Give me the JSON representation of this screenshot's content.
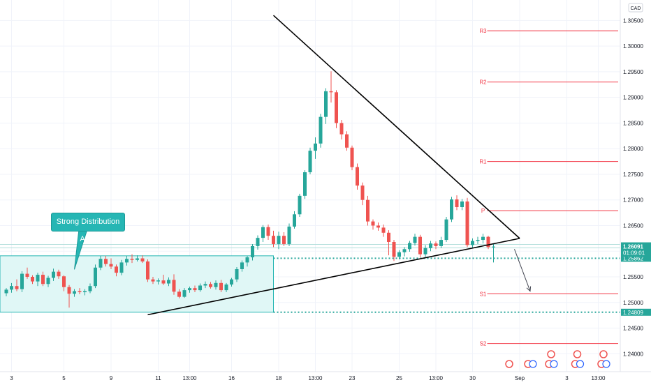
{
  "chart_data": {
    "type": "candlestick",
    "currency_badge": "CAD",
    "y_axis": {
      "min": 1.2365,
      "max": 1.309,
      "ticks": [
        "1.30500",
        "1.30000",
        "1.29500",
        "1.29000",
        "1.28500",
        "1.28000",
        "1.27500",
        "1.27000",
        "1.26500",
        "1.26000",
        "1.25500",
        "1.25000",
        "1.24500",
        "1.24000"
      ]
    },
    "x_axis": {
      "ticks": [
        {
          "label": "3",
          "bar": 1
        },
        {
          "label": "5",
          "bar": 11
        },
        {
          "label": "9",
          "bar": 20
        },
        {
          "label": "11",
          "bar": 29
        },
        {
          "label": "13:00",
          "bar": 35
        },
        {
          "label": "16",
          "bar": 43
        },
        {
          "label": "18",
          "bar": 52
        },
        {
          "label": "13:00",
          "bar": 59
        },
        {
          "label": "23",
          "bar": 66
        },
        {
          "label": "25",
          "bar": 75
        },
        {
          "label": "13:00",
          "bar": 82
        },
        {
          "label": "30",
          "bar": 89
        },
        {
          "label": "Sep",
          "bar": 98
        },
        {
          "label": "3",
          "bar": 107
        },
        {
          "label": "13:00",
          "bar": 113
        }
      ]
    },
    "candles": [
      [
        1.2518,
        1.2528,
        1.2512,
        1.2525
      ],
      [
        1.2525,
        1.2538,
        1.2519,
        1.2532
      ],
      [
        1.2532,
        1.2545,
        1.2522,
        1.2526
      ],
      [
        1.2526,
        1.2561,
        1.252,
        1.2556
      ],
      [
        1.2556,
        1.2568,
        1.2546,
        1.255
      ],
      [
        1.255,
        1.2553,
        1.2536,
        1.2541
      ],
      [
        1.2541,
        1.2558,
        1.2532,
        1.2554
      ],
      [
        1.2554,
        1.256,
        1.2532,
        1.2536
      ],
      [
        1.2536,
        1.2552,
        1.253,
        1.2548
      ],
      [
        1.2548,
        1.2566,
        1.2542,
        1.256
      ],
      [
        1.256,
        1.2564,
        1.2546,
        1.2551
      ],
      [
        1.2551,
        1.2553,
        1.2522,
        1.253
      ],
      [
        1.253,
        1.2534,
        1.249,
        1.2517
      ],
      [
        1.2517,
        1.2526,
        1.2511,
        1.2522
      ],
      [
        1.2522,
        1.2528,
        1.2516,
        1.252
      ],
      [
        1.252,
        1.2526,
        1.2514,
        1.2522
      ],
      [
        1.2522,
        1.2537,
        1.2518,
        1.2532
      ],
      [
        1.2532,
        1.2574,
        1.2528,
        1.2568
      ],
      [
        1.2568,
        1.2591,
        1.2563,
        1.2585
      ],
      [
        1.2585,
        1.2591,
        1.257,
        1.2575
      ],
      [
        1.2575,
        1.2586,
        1.2565,
        1.257
      ],
      [
        1.257,
        1.2574,
        1.2551,
        1.2558
      ],
      [
        1.2558,
        1.2583,
        1.2553,
        1.2578
      ],
      [
        1.2578,
        1.2591,
        1.2572,
        1.2585
      ],
      [
        1.2585,
        1.2594,
        1.2577,
        1.2583
      ],
      [
        1.2583,
        1.2592,
        1.258,
        1.2586
      ],
      [
        1.2586,
        1.2592,
        1.2577,
        1.258
      ],
      [
        1.258,
        1.2584,
        1.254,
        1.2545
      ],
      [
        1.2545,
        1.255,
        1.2536,
        1.2541
      ],
      [
        1.2541,
        1.2547,
        1.2535,
        1.2543
      ],
      [
        1.2543,
        1.2554,
        1.2534,
        1.2537
      ],
      [
        1.2537,
        1.2549,
        1.2532,
        1.2544
      ],
      [
        1.2544,
        1.2555,
        1.2515,
        1.2521
      ],
      [
        1.2521,
        1.2526,
        1.2508,
        1.2511
      ],
      [
        1.2511,
        1.2528,
        1.2509,
        1.2524
      ],
      [
        1.2524,
        1.2531,
        1.2519,
        1.2528
      ],
      [
        1.2528,
        1.2533,
        1.252,
        1.2524
      ],
      [
        1.2524,
        1.2537,
        1.2521,
        1.2533
      ],
      [
        1.2533,
        1.2541,
        1.2528,
        1.2536
      ],
      [
        1.2536,
        1.254,
        1.2527,
        1.253
      ],
      [
        1.253,
        1.2543,
        1.2525,
        1.2538
      ],
      [
        1.2538,
        1.2544,
        1.252,
        1.2524
      ],
      [
        1.2524,
        1.2538,
        1.252,
        1.2535
      ],
      [
        1.2535,
        1.2548,
        1.2531,
        1.2545
      ],
      [
        1.2545,
        1.2569,
        1.254,
        1.2565
      ],
      [
        1.2565,
        1.2582,
        1.256,
        1.2578
      ],
      [
        1.2578,
        1.2591,
        1.257,
        1.2588
      ],
      [
        1.2588,
        1.2614,
        1.2582,
        1.261
      ],
      [
        1.261,
        1.2631,
        1.2603,
        1.2626
      ],
      [
        1.2626,
        1.2651,
        1.2618,
        1.2647
      ],
      [
        1.2647,
        1.2652,
        1.2622,
        1.263
      ],
      [
        1.263,
        1.264,
        1.2608,
        1.2614
      ],
      [
        1.2614,
        1.2638,
        1.2604,
        1.263
      ],
      [
        1.263,
        1.2637,
        1.261,
        1.2614
      ],
      [
        1.2614,
        1.2654,
        1.261,
        1.2648
      ],
      [
        1.2648,
        1.2678,
        1.2644,
        1.2672
      ],
      [
        1.2672,
        1.2712,
        1.2667,
        1.2708
      ],
      [
        1.2708,
        1.2758,
        1.2702,
        1.2754
      ],
      [
        1.2754,
        1.2802,
        1.275,
        1.2796
      ],
      [
        1.2796,
        1.2822,
        1.278,
        1.281
      ],
      [
        1.281,
        1.2868,
        1.2802,
        1.2862
      ],
      [
        1.2862,
        1.2918,
        1.2848,
        1.2912
      ],
      [
        1.2912,
        1.2951,
        1.289,
        1.291
      ],
      [
        1.291,
        1.2914,
        1.284,
        1.285
      ],
      [
        1.285,
        1.2856,
        1.2818,
        1.2828
      ],
      [
        1.2828,
        1.2834,
        1.2796,
        1.2802
      ],
      [
        1.2802,
        1.2806,
        1.2758,
        1.2764
      ],
      [
        1.2764,
        1.2771,
        1.272,
        1.2728
      ],
      [
        1.2728,
        1.2734,
        1.269,
        1.27
      ],
      [
        1.27,
        1.2708,
        1.265,
        1.2658
      ],
      [
        1.2658,
        1.2662,
        1.2642,
        1.265
      ],
      [
        1.265,
        1.2656,
        1.264,
        1.2646
      ],
      [
        1.2646,
        1.2652,
        1.2628,
        1.2636
      ],
      [
        1.2636,
        1.2641,
        1.2592,
        1.2618
      ],
      [
        1.2618,
        1.2622,
        1.2581,
        1.2589
      ],
      [
        1.2589,
        1.2602,
        1.2584,
        1.2598
      ],
      [
        1.2598,
        1.2608,
        1.259,
        1.2604
      ],
      [
        1.2604,
        1.262,
        1.2599,
        1.2616
      ],
      [
        1.2616,
        1.2634,
        1.2611,
        1.2628
      ],
      [
        1.2628,
        1.2632,
        1.2588,
        1.2594
      ],
      [
        1.2594,
        1.2612,
        1.2589,
        1.2606
      ],
      [
        1.2606,
        1.262,
        1.26,
        1.2615
      ],
      [
        1.2615,
        1.2619,
        1.2604,
        1.261
      ],
      [
        1.261,
        1.2628,
        1.2606,
        1.2622
      ],
      [
        1.2622,
        1.2667,
        1.2618,
        1.2662
      ],
      [
        1.2662,
        1.2706,
        1.2657,
        1.2701
      ],
      [
        1.2701,
        1.2709,
        1.268,
        1.2686
      ],
      [
        1.2686,
        1.2702,
        1.268,
        1.2697
      ],
      [
        1.2697,
        1.2704,
        1.2608,
        1.2612
      ],
      [
        1.2612,
        1.2625,
        1.2606,
        1.262
      ],
      [
        1.262,
        1.2628,
        1.2614,
        1.2622
      ],
      [
        1.2622,
        1.2634,
        1.2615,
        1.2628
      ],
      [
        1.2628,
        1.263,
        1.2604,
        1.2608
      ],
      [
        1.2608,
        1.2615,
        1.2578,
        1.2609
      ]
    ],
    "first_candle_bar": 0,
    "pivots": [
      {
        "label": "R3",
        "value": 1.303
      },
      {
        "label": "R2",
        "value": 1.293
      },
      {
        "label": "R1",
        "value": 1.2775
      },
      {
        "label": "P",
        "value": 1.2679
      },
      {
        "label": "S1",
        "value": 1.2517
      },
      {
        "label": "S2",
        "value": 1.242
      }
    ],
    "horizontal_levels": [
      {
        "value": 1.25862,
        "label": "1.25862",
        "color": "#26a69a"
      },
      {
        "value": 1.24809,
        "label": "1.24809",
        "color": "#26a69a"
      }
    ],
    "current_price": {
      "label": "1.26091",
      "countdown": "01:09:01",
      "value": 1.26091
    },
    "distribution_area": {
      "from_bar": -2,
      "to_bar": 51,
      "top": 1.2591,
      "bottom": 1.2481
    },
    "trendlines": [
      {
        "from": {
          "bar": 51,
          "price": 1.306
        },
        "to": {
          "bar": 98,
          "price": 1.2625
        }
      },
      {
        "from": {
          "bar": 27,
          "price": 1.2476
        },
        "to": {
          "bar": 98,
          "price": 1.2625
        }
      }
    ],
    "projection_arrow": {
      "from": {
        "bar": 97,
        "price": 1.2604
      },
      "to": {
        "bar": 100,
        "price": 1.2522
      }
    },
    "annotation": {
      "text": "Strong Distribution Area",
      "target": {
        "bar": 13,
        "price": 1.2578
      }
    },
    "event_markers": [
      {
        "bar": 96,
        "kind": "us"
      },
      {
        "bar": 100,
        "kind": "ca-us"
      },
      {
        "bar": 104,
        "kind": "ca-us-stack"
      },
      {
        "bar": 109,
        "kind": "ca-us-stack"
      },
      {
        "bar": 114,
        "kind": "ca-us-stack"
      }
    ],
    "colors": {
      "up": "#26a69a",
      "down": "#ef5350",
      "pivot": "#f23645",
      "trend": "#000000",
      "distribution_fill": "#e0f7f6",
      "distribution_stroke": "#26b6b4",
      "grid": "#f0f3fa",
      "current_price_bg": "#26a69a",
      "axis_text": "#131722"
    }
  }
}
